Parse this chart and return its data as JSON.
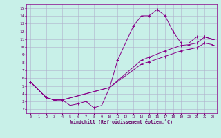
{
  "xlabel": "Windchill (Refroidissement éolien,°C)",
  "bg_color": "#c8f0e8",
  "grid_color": "#b0b0cc",
  "line_color": "#880088",
  "xlim": [
    -0.5,
    23.5
  ],
  "ylim": [
    1.5,
    15.5
  ],
  "xticks": [
    0,
    1,
    2,
    3,
    4,
    5,
    6,
    7,
    8,
    9,
    10,
    11,
    12,
    13,
    14,
    15,
    16,
    17,
    18,
    19,
    20,
    21,
    22,
    23
  ],
  "yticks": [
    2,
    3,
    4,
    5,
    6,
    7,
    8,
    9,
    10,
    11,
    12,
    13,
    14,
    15
  ],
  "line1_x": [
    0,
    1,
    2,
    3,
    4,
    5,
    6,
    7,
    8,
    9,
    10,
    11,
    12,
    13,
    14,
    15,
    16,
    17,
    18,
    19,
    20,
    21,
    22,
    23
  ],
  "line1_y": [
    5.5,
    4.5,
    3.5,
    3.2,
    3.2,
    2.5,
    2.7,
    3.0,
    2.2,
    2.5,
    4.8,
    8.3,
    10.5,
    12.7,
    14.0,
    14.0,
    14.8,
    14.0,
    12.0,
    10.5,
    10.5,
    11.3,
    11.3,
    11.0
  ],
  "line2_x": [
    0,
    1,
    2,
    3,
    4,
    10,
    14,
    15,
    17,
    19,
    20,
    21,
    22,
    23
  ],
  "line2_y": [
    5.5,
    4.5,
    3.5,
    3.2,
    3.2,
    4.8,
    8.3,
    8.7,
    9.5,
    10.2,
    10.3,
    10.5,
    11.3,
    11.0
  ],
  "line3_x": [
    0,
    1,
    2,
    3,
    4,
    10,
    14,
    15,
    17,
    19,
    20,
    21,
    22,
    23
  ],
  "line3_y": [
    5.5,
    4.5,
    3.5,
    3.2,
    3.2,
    4.8,
    7.8,
    8.1,
    8.8,
    9.5,
    9.7,
    9.9,
    10.5,
    10.3
  ]
}
